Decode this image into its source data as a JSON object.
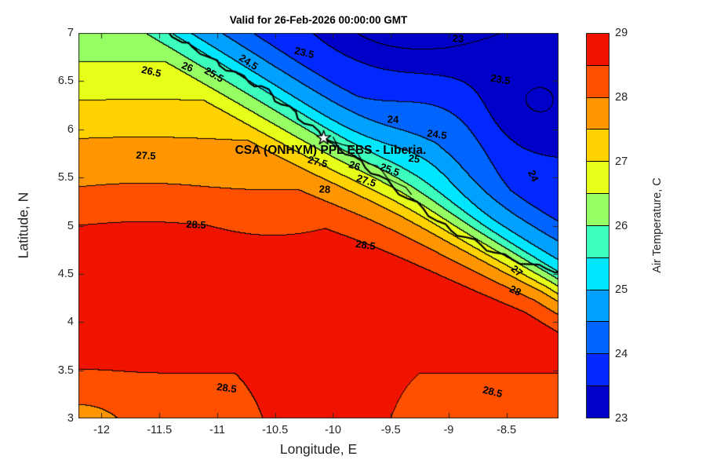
{
  "figure": {
    "background": "#ffffff",
    "title": "Valid for 26-Feb-2026 00:00:00 GMT"
  },
  "axes": {
    "xlabel": "Longitude, E",
    "ylabel": "Latitude, N",
    "xlim": [
      -12.2,
      -8.05
    ],
    "ylim": [
      3,
      7
    ],
    "xticks": [
      {
        "v": -12,
        "label": "-12"
      },
      {
        "v": -11.5,
        "label": "-11.5"
      },
      {
        "v": -11,
        "label": "-11"
      },
      {
        "v": -10.5,
        "label": "-10.5"
      },
      {
        "v": -10,
        "label": "-10"
      },
      {
        "v": -9.5,
        "label": "-9.5"
      },
      {
        "v": -9,
        "label": "-9"
      },
      {
        "v": -8.5,
        "label": "-8.5"
      }
    ],
    "yticks": [
      {
        "v": 3,
        "label": "3"
      },
      {
        "v": 3.5,
        "label": "3.5"
      },
      {
        "v": 4,
        "label": "4"
      },
      {
        "v": 4.5,
        "label": "4.5"
      },
      {
        "v": 5,
        "label": "5"
      },
      {
        "v": 5.5,
        "label": "5.5"
      },
      {
        "v": 6,
        "label": "6"
      },
      {
        "v": 6.5,
        "label": "6.5"
      },
      {
        "v": 7,
        "label": "7"
      }
    ]
  },
  "colorbar": {
    "label": "Air Temperature, C",
    "min": 23,
    "max": 29,
    "ticks": [
      {
        "v": 23,
        "label": "23"
      },
      {
        "v": 24,
        "label": "24"
      },
      {
        "v": 25,
        "label": "25"
      },
      {
        "v": 26,
        "label": "26"
      },
      {
        "v": 27,
        "label": "27"
      },
      {
        "v": 28,
        "label": "28"
      },
      {
        "v": 29,
        "label": "29"
      }
    ],
    "band_colors": [
      "#0000C8",
      "#0028FF",
      "#0064FF",
      "#00A0FF",
      "#00E6FF",
      "#3CFFBE",
      "#96FF64",
      "#E6FF19",
      "#FFD200",
      "#FF9600",
      "#FF5000",
      "#F01400"
    ]
  },
  "chart_data": {
    "type": "heatmap",
    "variant": "filled-contour",
    "title": "Valid for 26-Feb-2026 00:00:00 GMT",
    "xlabel": "Longitude, E",
    "ylabel": "Latitude, N",
    "xlim": [
      -12.2,
      -8.05
    ],
    "ylim": [
      3,
      7
    ],
    "value_label": "Air Temperature, C",
    "value_range": [
      23,
      29
    ],
    "levels": [
      23,
      23.5,
      24,
      24.5,
      25,
      25.5,
      26,
      26.5,
      27,
      27.5,
      28,
      28.5,
      29
    ],
    "line_color": "#000000",
    "annotation": {
      "text": "CSA (ONHYM) PPL EBS - Liberia.",
      "lon": -10.02,
      "lat": 5.78
    },
    "star_marker": {
      "lon": -10.08,
      "lat": 5.91
    },
    "contour_labels": [
      {
        "text": "23.5",
        "lon": -10.25,
        "lat": 6.8,
        "rot": 14
      },
      {
        "text": "23",
        "lon": -8.92,
        "lat": 6.94,
        "rot": 4
      },
      {
        "text": "23.5",
        "lon": -8.55,
        "lat": 6.52,
        "rot": 10
      },
      {
        "text": "26.5",
        "lon": -11.57,
        "lat": 6.6,
        "rot": 13
      },
      {
        "text": "26",
        "lon": -11.26,
        "lat": 6.65,
        "rot": 22
      },
      {
        "text": "25.5",
        "lon": -11.03,
        "lat": 6.57,
        "rot": 30
      },
      {
        "text": "24.5",
        "lon": -10.73,
        "lat": 6.7,
        "rot": 33
      },
      {
        "text": "24",
        "lon": -9.48,
        "lat": 6.1,
        "rot": 2
      },
      {
        "text": "24.5",
        "lon": -9.1,
        "lat": 5.95,
        "rot": 8
      },
      {
        "text": "25",
        "lon": -9.3,
        "lat": 5.7,
        "rot": 8
      },
      {
        "text": "24",
        "lon": -8.27,
        "lat": 5.52,
        "rot": 65
      },
      {
        "text": "27.5",
        "lon": -11.62,
        "lat": 5.73,
        "rot": 3
      },
      {
        "text": "27.5",
        "lon": -10.13,
        "lat": 5.66,
        "rot": 15
      },
      {
        "text": "26",
        "lon": -9.81,
        "lat": 5.62,
        "rot": 18
      },
      {
        "text": "25.5",
        "lon": -9.51,
        "lat": 5.58,
        "rot": 20
      },
      {
        "text": "27.5",
        "lon": -9.71,
        "lat": 5.47,
        "rot": 18
      },
      {
        "text": "28",
        "lon": -10.07,
        "lat": 5.38,
        "rot": 3
      },
      {
        "text": "28.5",
        "lon": -11.18,
        "lat": 5.01,
        "rot": 3
      },
      {
        "text": "28.5",
        "lon": -9.72,
        "lat": 4.8,
        "rot": 8
      },
      {
        "text": "27",
        "lon": -8.41,
        "lat": 4.53,
        "rot": 40
      },
      {
        "text": "28",
        "lon": -8.42,
        "lat": 4.33,
        "rot": 25
      },
      {
        "text": "28.5",
        "lon": -10.92,
        "lat": 3.32,
        "rot": 8
      },
      {
        "text": "28.5",
        "lon": -8.62,
        "lat": 3.28,
        "rot": 14
      }
    ],
    "coastline": [
      [
        -11.45,
        7.05
      ],
      [
        -11.3,
        6.9
      ],
      [
        -11.22,
        6.86
      ],
      [
        -11.05,
        6.74
      ],
      [
        -10.98,
        6.66
      ],
      [
        -10.85,
        6.6
      ],
      [
        -10.72,
        6.48
      ],
      [
        -10.62,
        6.45
      ],
      [
        -10.52,
        6.35
      ],
      [
        -10.45,
        6.26
      ],
      [
        -10.32,
        6.18
      ],
      [
        -10.25,
        6.06
      ],
      [
        -10.12,
        5.98
      ],
      [
        -10.03,
        5.88
      ],
      [
        -9.95,
        5.8
      ],
      [
        -9.82,
        5.72
      ],
      [
        -9.72,
        5.6
      ],
      [
        -9.6,
        5.52
      ],
      [
        -9.48,
        5.4
      ],
      [
        -9.35,
        5.28
      ],
      [
        -9.22,
        5.18
      ],
      [
        -9.1,
        5.05
      ],
      [
        -8.98,
        4.95
      ],
      [
        -8.85,
        4.88
      ],
      [
        -8.72,
        4.8
      ],
      [
        -8.6,
        4.72
      ],
      [
        -8.45,
        4.65
      ],
      [
        -8.3,
        4.6
      ],
      [
        -8.15,
        4.55
      ],
      [
        -8.0,
        4.52
      ]
    ],
    "field_model": {
      "coast_ref": {
        "ax": -11.5,
        "ay": 7.05,
        "bx": -8.05,
        "by": 4.5
      },
      "sea_profile": [
        [
          2.5,
          28.75
        ],
        [
          4.4,
          28.75
        ],
        [
          5.0,
          28.5
        ],
        [
          5.4,
          28.0
        ],
        [
          5.9,
          27.5
        ],
        [
          6.3,
          27.0
        ],
        [
          6.7,
          26.5
        ],
        [
          7.0,
          26.05
        ],
        [
          7.6,
          25.5
        ]
      ],
      "cap_profile": [
        [
          -3.0,
          22.85
        ],
        [
          -2.6,
          22.9
        ],
        [
          -1.9,
          23.1
        ],
        [
          -1.3,
          23.4
        ],
        [
          -0.8,
          23.7
        ],
        [
          -0.45,
          24.0
        ],
        [
          -0.28,
          24.5
        ],
        [
          -0.12,
          25.0
        ],
        [
          0,
          25.6
        ],
        [
          0.14,
          26.1
        ],
        [
          0.26,
          26.5
        ],
        [
          0.42,
          27.0
        ],
        [
          0.58,
          27.5
        ],
        [
          0.85,
          28.0
        ],
        [
          1.15,
          28.4
        ],
        [
          1.45,
          28.8
        ],
        [
          9,
          28.85
        ]
      ],
      "cap_width": {
        "base": 0.55,
        "slope": 0.33,
        "min": 0.18
      },
      "bottom_cool": {
        "amp": 0.45,
        "lat_start": 3.9,
        "lat_scale": 0.9,
        "lon_center": -10.05,
        "lon_scale": 0.55,
        "max_h": 1.15
      },
      "anomalies": [
        {
          "lon": -9.4,
          "lat": 7.3,
          "amp": -1.1,
          "sx": 0.5,
          "sy": 0.3
        },
        {
          "lon": -8.3,
          "lat": 6.2,
          "amp": -0.45,
          "sx": 0.18,
          "sy": 0.18
        },
        {
          "lon": -9.1,
          "lat": 5.85,
          "amp": 0.5,
          "sx": 0.25,
          "sy": 0.3
        },
        {
          "lon": -12.19,
          "lat": 2.9,
          "amp": -0.5,
          "sx": 0.16,
          "sy": 0.12
        }
      ],
      "wiggle": {
        "amp": 0.05,
        "freq": 2.8,
        "lat_center": 5.1,
        "lat_halfwidth": 1.4
      }
    }
  }
}
